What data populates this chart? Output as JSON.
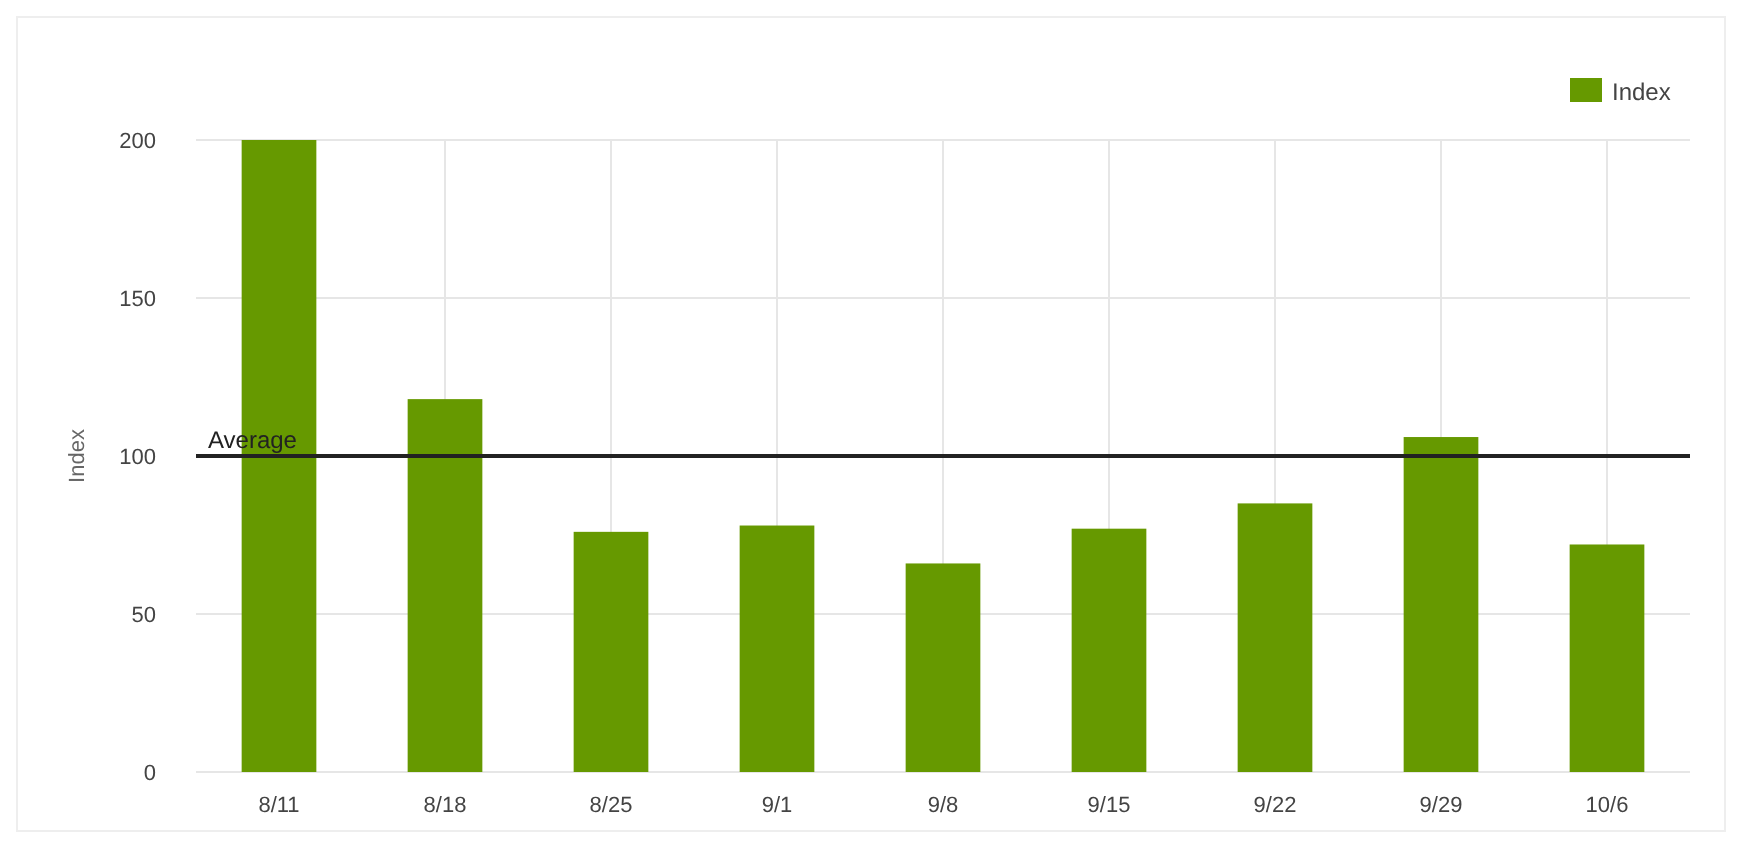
{
  "chart_data": {
    "type": "bar",
    "ylabel": "Index",
    "categories": [
      "8/11",
      "8/18",
      "8/25",
      "9/1",
      "9/8",
      "9/15",
      "9/22",
      "9/29",
      "10/6"
    ],
    "series": [
      {
        "name": "Index",
        "color": "#669900",
        "values": [
          200,
          118,
          76,
          78,
          66,
          77,
          85,
          106,
          72
        ]
      }
    ],
    "ylim": [
      0,
      200
    ],
    "yticks": [
      0,
      50,
      100,
      150,
      200
    ],
    "grid": true,
    "legend": "top right",
    "ref_lines": [
      {
        "axis": "y",
        "value": 100,
        "label": "Average",
        "color": "#222222"
      }
    ]
  }
}
